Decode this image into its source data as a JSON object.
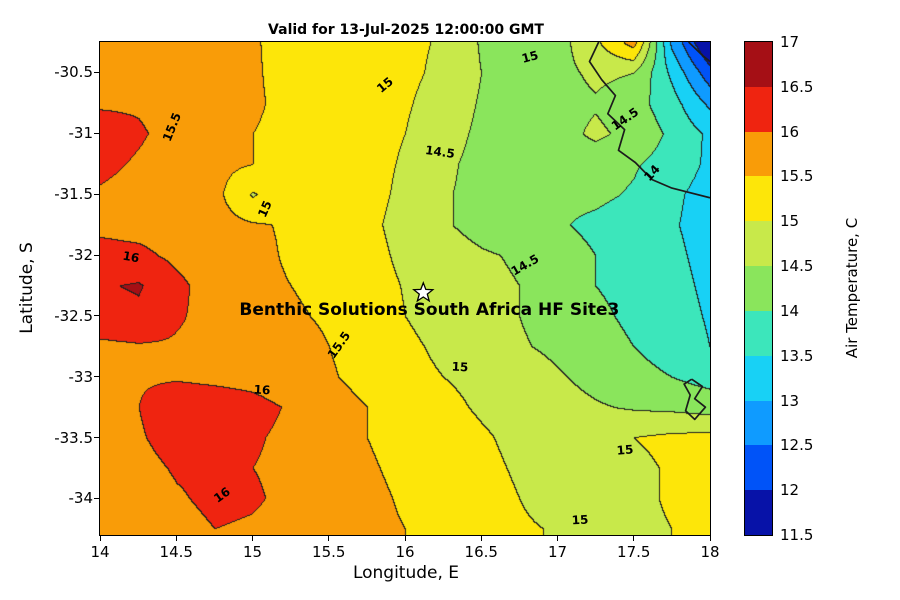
{
  "chart_data": {
    "type": "filled_contour_map",
    "title": "Valid for 13-Jul-2025 12:00:00 GMT",
    "xlabel": "Longitude, E",
    "ylabel": "Latitude, S",
    "xlim": [
      14,
      18
    ],
    "ylim": [
      -34.3,
      -30.25
    ],
    "x_ticks": [
      14,
      14.5,
      15,
      15.5,
      16,
      16.5,
      17,
      17.5,
      18
    ],
    "y_ticks": [
      -30.5,
      -31,
      -31.5,
      -32,
      -32.5,
      -33,
      -33.5,
      -34
    ],
    "colorbar": {
      "label": "Air Temperature, C",
      "tick_labels": [
        17,
        16.5,
        16,
        15.5,
        15,
        14.5,
        14,
        13.5,
        13,
        12.5,
        12,
        11.5
      ],
      "level_min": 11.5,
      "level_step": 0.5,
      "band_colors_low_to_high": [
        "#0712a8",
        "#0053f8",
        "#0f9bff",
        "#18d1f5",
        "#3ce6bb",
        "#8ae55c",
        "#c8e94a",
        "#fde609",
        "#f99c08",
        "#ef2410",
        "#a50f15"
      ]
    },
    "grid": {
      "lon_start": 14,
      "lon_step": 0.25,
      "lat_start": -30.25,
      "lat_step": -0.25,
      "temps_c": [
        [
          15.7,
          15.8,
          15.85,
          15.75,
          15.55,
          15.3,
          15.25,
          15.15,
          15.1,
          14.95,
          14.45,
          14.25,
          14.3,
          14.9,
          15.7,
          12.9,
          11.4
        ],
        [
          15.75,
          15.85,
          15.9,
          15.7,
          15.55,
          15.35,
          15.3,
          15.2,
          15.1,
          14.9,
          14.5,
          14.3,
          14.35,
          14.6,
          14.5,
          13.4,
          12.2
        ],
        [
          15.95,
          15.95,
          15.85,
          15.7,
          15.55,
          15.4,
          15.3,
          15.2,
          15.05,
          14.8,
          14.45,
          14.3,
          14.3,
          14.45,
          14.2,
          13.7,
          12.9
        ],
        [
          16.2,
          16.05,
          15.85,
          15.65,
          15.5,
          15.4,
          15.3,
          15.15,
          15.0,
          14.7,
          14.4,
          14.3,
          14.3,
          14.6,
          14.35,
          13.9,
          13.4
        ],
        [
          16.1,
          15.95,
          15.8,
          15.65,
          15.5,
          15.4,
          15.3,
          15.15,
          14.95,
          14.6,
          14.35,
          14.25,
          14.2,
          14.2,
          14.05,
          13.8,
          13.4
        ],
        [
          15.95,
          15.85,
          15.75,
          15.65,
          14.95,
          15.35,
          15.3,
          15.15,
          14.9,
          14.55,
          14.35,
          14.2,
          14.1,
          14.1,
          13.95,
          13.6,
          13.3
        ],
        [
          15.9,
          15.85,
          15.8,
          15.7,
          15.55,
          15.45,
          15.3,
          15.1,
          14.85,
          14.55,
          14.35,
          14.2,
          14.05,
          13.9,
          13.75,
          13.55,
          13.3
        ],
        [
          16.15,
          16.1,
          15.9,
          15.75,
          15.6,
          15.45,
          15.35,
          15.15,
          14.9,
          14.7,
          14.55,
          14.45,
          14.2,
          14.0,
          13.8,
          13.6,
          13.35
        ],
        [
          16.45,
          16.55,
          16.1,
          15.8,
          15.6,
          15.5,
          15.4,
          15.2,
          14.97,
          14.75,
          14.6,
          14.5,
          14.3,
          14.0,
          13.85,
          13.65,
          13.4
        ],
        [
          16.3,
          16.4,
          16.05,
          15.85,
          15.7,
          15.55,
          15.45,
          15.25,
          15.0,
          14.8,
          14.6,
          14.5,
          14.3,
          14.1,
          13.9,
          13.7,
          13.45
        ],
        [
          15.9,
          15.95,
          15.95,
          15.9,
          15.8,
          15.65,
          15.5,
          15.3,
          15.1,
          14.9,
          14.7,
          14.55,
          14.4,
          14.2,
          14.0,
          13.8,
          13.5
        ],
        [
          15.95,
          15.95,
          15.95,
          15.9,
          15.85,
          15.7,
          15.55,
          15.35,
          15.15,
          15.0,
          14.9,
          14.75,
          14.55,
          14.35,
          14.15,
          14.0,
          13.8
        ],
        [
          15.9,
          16.0,
          16.3,
          16.25,
          16.15,
          15.95,
          15.7,
          15.5,
          15.3,
          15.1,
          14.95,
          14.85,
          14.7,
          14.55,
          14.45,
          14.4,
          14.3
        ],
        [
          15.85,
          15.95,
          16.2,
          16.15,
          16.05,
          15.9,
          15.7,
          15.5,
          15.35,
          15.2,
          15.05,
          14.9,
          14.8,
          14.85,
          15.0,
          15.1,
          15.15
        ],
        [
          15.7,
          15.85,
          16.05,
          16.1,
          16.0,
          15.9,
          15.75,
          15.55,
          15.4,
          15.25,
          15.1,
          14.95,
          14.85,
          14.75,
          14.9,
          15.05,
          15.15
        ],
        [
          15.6,
          15.75,
          15.95,
          16.1,
          16.05,
          15.9,
          15.75,
          15.6,
          15.45,
          15.3,
          15.15,
          15.0,
          14.85,
          14.75,
          14.9,
          15.05,
          15.15
        ],
        [
          15.5,
          15.65,
          15.85,
          16.0,
          15.95,
          15.85,
          15.7,
          15.6,
          15.5,
          15.35,
          15.2,
          15.05,
          14.97,
          14.85,
          14.9,
          15.0,
          15.1
        ]
      ]
    },
    "contour_labels": [
      {
        "text": "15",
        "lon": 15.87,
        "lat": -30.6,
        "rot": -40
      },
      {
        "text": "15",
        "lon": 16.82,
        "lat": -30.37,
        "rot": -15
      },
      {
        "text": "15.5",
        "lon": 14.47,
        "lat": -30.95,
        "rot": -68
      },
      {
        "text": "14.5",
        "lon": 17.44,
        "lat": -30.88,
        "rot": -35
      },
      {
        "text": "14.5",
        "lon": 16.23,
        "lat": -31.15,
        "rot": 8
      },
      {
        "text": "14",
        "lon": 17.62,
        "lat": -31.33,
        "rot": -48
      },
      {
        "text": "15",
        "lon": 15.08,
        "lat": -31.62,
        "rot": -66
      },
      {
        "text": "16",
        "lon": 14.2,
        "lat": -32.02,
        "rot": 10
      },
      {
        "text": "14.5",
        "lon": 16.79,
        "lat": -32.08,
        "rot": -30
      },
      {
        "text": "15.5",
        "lon": 15.57,
        "lat": -32.74,
        "rot": -55
      },
      {
        "text": "15",
        "lon": 16.36,
        "lat": -32.92,
        "rot": 3
      },
      {
        "text": "16",
        "lon": 15.06,
        "lat": -33.11,
        "rot": 3
      },
      {
        "text": "15",
        "lon": 17.44,
        "lat": -33.6,
        "rot": -5
      },
      {
        "text": "16",
        "lon": 14.8,
        "lat": -33.97,
        "rot": -35
      },
      {
        "text": "15",
        "lon": 17.15,
        "lat": -34.18,
        "rot": -3
      }
    ],
    "coastlines": [
      [
        [
          17.27,
          -30.25
        ],
        [
          17.21,
          -30.41
        ],
        [
          17.29,
          -30.56
        ],
        [
          17.38,
          -30.69
        ],
        [
          17.33,
          -30.84
        ],
        [
          17.44,
          -30.97
        ],
        [
          17.4,
          -31.14
        ],
        [
          17.51,
          -31.24
        ],
        [
          17.62,
          -31.38
        ],
        [
          17.75,
          -31.45
        ],
        [
          18.0,
          -31.53
        ]
      ],
      [
        [
          17.86,
          -30.25
        ],
        [
          17.95,
          -30.36
        ],
        [
          18.0,
          -30.41
        ]
      ],
      [
        [
          17.88,
          -33.02
        ],
        [
          17.95,
          -33.08
        ],
        [
          17.9,
          -33.18
        ],
        [
          17.97,
          -33.25
        ],
        [
          17.9,
          -33.35
        ],
        [
          17.84,
          -33.28
        ],
        [
          17.87,
          -33.15
        ],
        [
          17.83,
          -33.06
        ],
        [
          17.88,
          -33.02
        ]
      ]
    ],
    "marker": {
      "symbol": "star",
      "lon": 16.12,
      "lat": -32.31,
      "label": "Benthic Solutions South Africa HF Site3",
      "label_lon": 16.16,
      "label_lat": -32.45
    }
  }
}
